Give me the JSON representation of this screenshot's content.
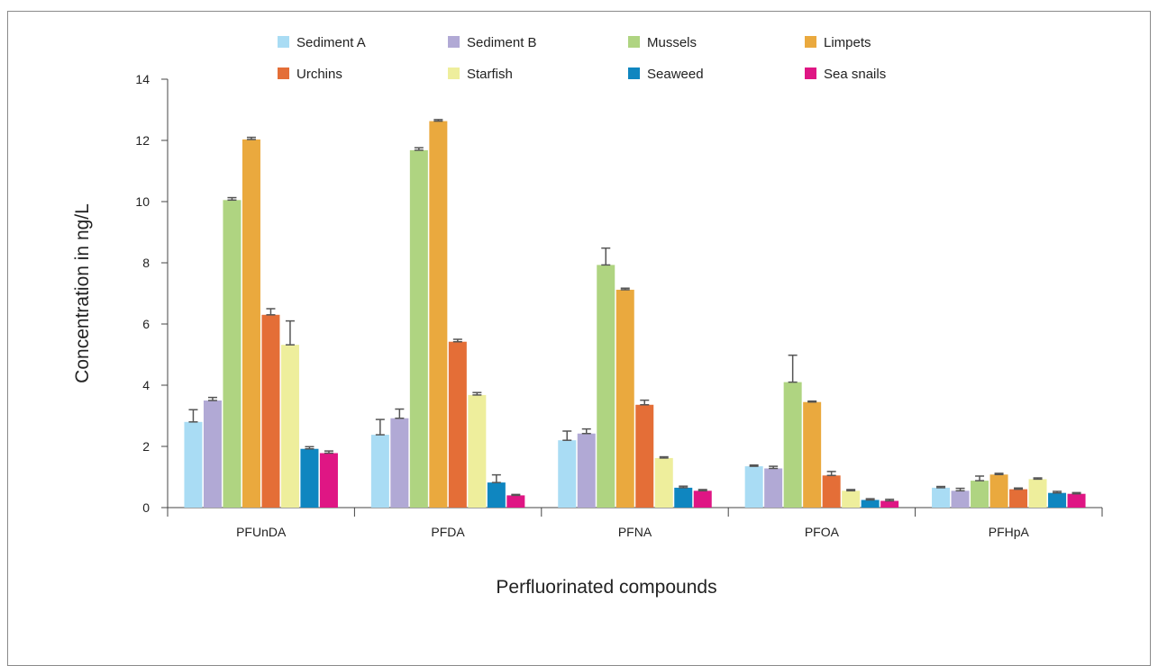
{
  "chart_data": {
    "type": "bar",
    "xlabel": "Perfluorinated compounds",
    "ylabel": "Concentration in ng/L",
    "ylim": [
      0,
      14
    ],
    "yticks": [
      0,
      2,
      4,
      6,
      8,
      10,
      12,
      14
    ],
    "grid": false,
    "legend_position": "top",
    "categories": [
      "PFUnDA",
      "PFDA",
      "PFNA",
      "PFOA",
      "PFHpA"
    ],
    "series": [
      {
        "name": "Sediment A",
        "color": "#a9dcf4",
        "values": [
          2.8,
          2.38,
          2.2,
          1.35,
          0.65
        ],
        "errors": [
          0.4,
          0.5,
          0.3,
          0.04,
          0.04
        ]
      },
      {
        "name": "Sediment B",
        "color": "#b1a9d5",
        "values": [
          3.5,
          2.92,
          2.42,
          1.28,
          0.55
        ],
        "errors": [
          0.1,
          0.3,
          0.15,
          0.07,
          0.08
        ]
      },
      {
        "name": "Mussels",
        "color": "#afd481",
        "values": [
          10.05,
          11.68,
          7.93,
          4.1,
          0.88
        ],
        "errors": [
          0.08,
          0.08,
          0.55,
          0.88,
          0.15
        ]
      },
      {
        "name": "Limpets",
        "color": "#eaa93e",
        "values": [
          12.03,
          12.63,
          7.12,
          3.45,
          1.08
        ],
        "errors": [
          0.07,
          0.05,
          0.05,
          0.03,
          0.04
        ]
      },
      {
        "name": "Urchins",
        "color": "#e46e37",
        "values": [
          6.3,
          5.42,
          3.36,
          1.05,
          0.6
        ],
        "errors": [
          0.2,
          0.08,
          0.15,
          0.13,
          0.04
        ]
      },
      {
        "name": "Starfish",
        "color": "#eeee9c",
        "values": [
          5.32,
          3.68,
          1.62,
          0.55,
          0.93
        ],
        "errors": [
          0.78,
          0.08,
          0.04,
          0.04,
          0.04
        ]
      },
      {
        "name": "Seaweed",
        "color": "#0f86c0",
        "values": [
          1.92,
          0.82,
          0.65,
          0.25,
          0.48
        ],
        "errors": [
          0.07,
          0.25,
          0.05,
          0.04,
          0.05
        ]
      },
      {
        "name": "Sea snails",
        "color": "#df1684",
        "values": [
          1.78,
          0.4,
          0.55,
          0.22,
          0.45
        ],
        "errors": [
          0.07,
          0.03,
          0.04,
          0.05,
          0.04
        ]
      }
    ]
  }
}
